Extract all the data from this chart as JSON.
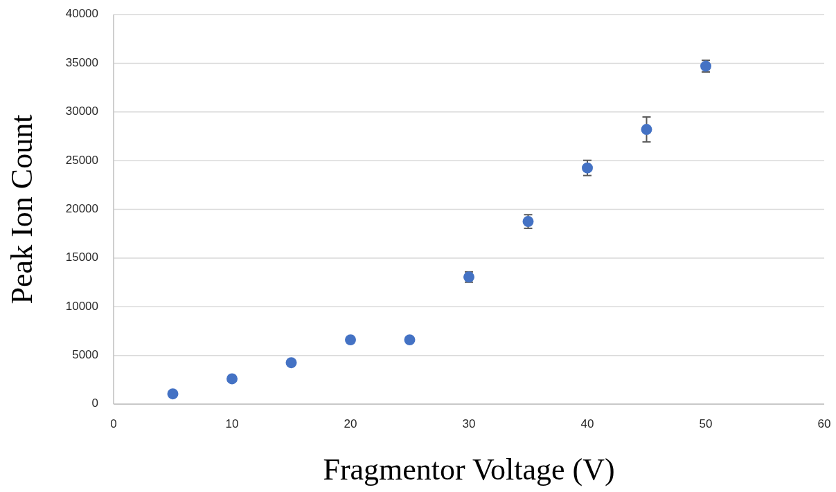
{
  "chart_data": {
    "type": "scatter",
    "xlabel": "Fragmentor Voltage (V)",
    "ylabel": "Peak Ion Count",
    "x": [
      5,
      10,
      15,
      20,
      25,
      30,
      35,
      40,
      45,
      50
    ],
    "series": [
      {
        "color": "#4472c4",
        "values": [
          1050,
          2600,
          4250,
          6600,
          6600,
          13050,
          18750,
          24250,
          28200,
          34700
        ],
        "errors": [
          null,
          null,
          null,
          null,
          null,
          530,
          700,
          780,
          1280,
          600
        ]
      }
    ],
    "xlim": [
      0,
      60
    ],
    "xticks": [
      0,
      10,
      20,
      30,
      40,
      50,
      60
    ],
    "ylim": [
      0,
      40000
    ],
    "yticks": [
      0,
      5000,
      10000,
      15000,
      20000,
      25000,
      30000,
      35000,
      40000
    ],
    "grid": "y",
    "marker": "circle"
  }
}
